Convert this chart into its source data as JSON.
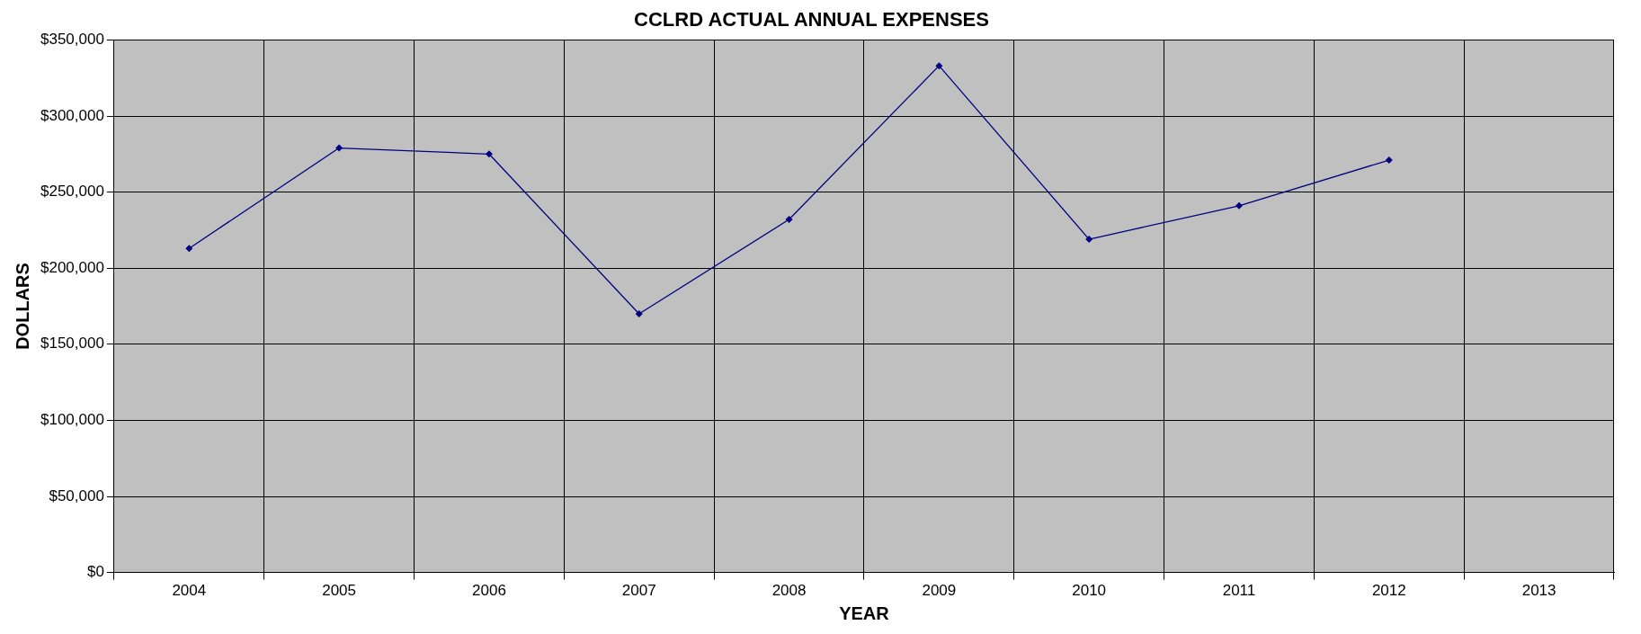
{
  "chart_data": {
    "type": "line",
    "title": "CCLRD ACTUAL ANNUAL EXPENSES",
    "xlabel": "YEAR",
    "ylabel": "DOLLARS",
    "categories": [
      "2004",
      "2005",
      "2006",
      "2007",
      "2008",
      "2009",
      "2010",
      "2011",
      "2012",
      "2013"
    ],
    "series": [
      {
        "color": "#000080",
        "values": [
          213000,
          279000,
          275000,
          170000,
          232000,
          333000,
          219000,
          241000,
          271000,
          null
        ]
      }
    ],
    "ylim": [
      0,
      350000
    ],
    "yticks": [
      {
        "value": 0,
        "label": "$0"
      },
      {
        "value": 50000,
        "label": "$50,000"
      },
      {
        "value": 100000,
        "label": "$100,000"
      },
      {
        "value": 150000,
        "label": "$150,000"
      },
      {
        "value": 200000,
        "label": "$200,000"
      },
      {
        "value": 250000,
        "label": "$250,000"
      },
      {
        "value": 300000,
        "label": "$300,000"
      },
      {
        "value": 350000,
        "label": "$350,000"
      }
    ],
    "grid": true,
    "legend": false,
    "marker": "diamond",
    "line_style": "solid"
  }
}
